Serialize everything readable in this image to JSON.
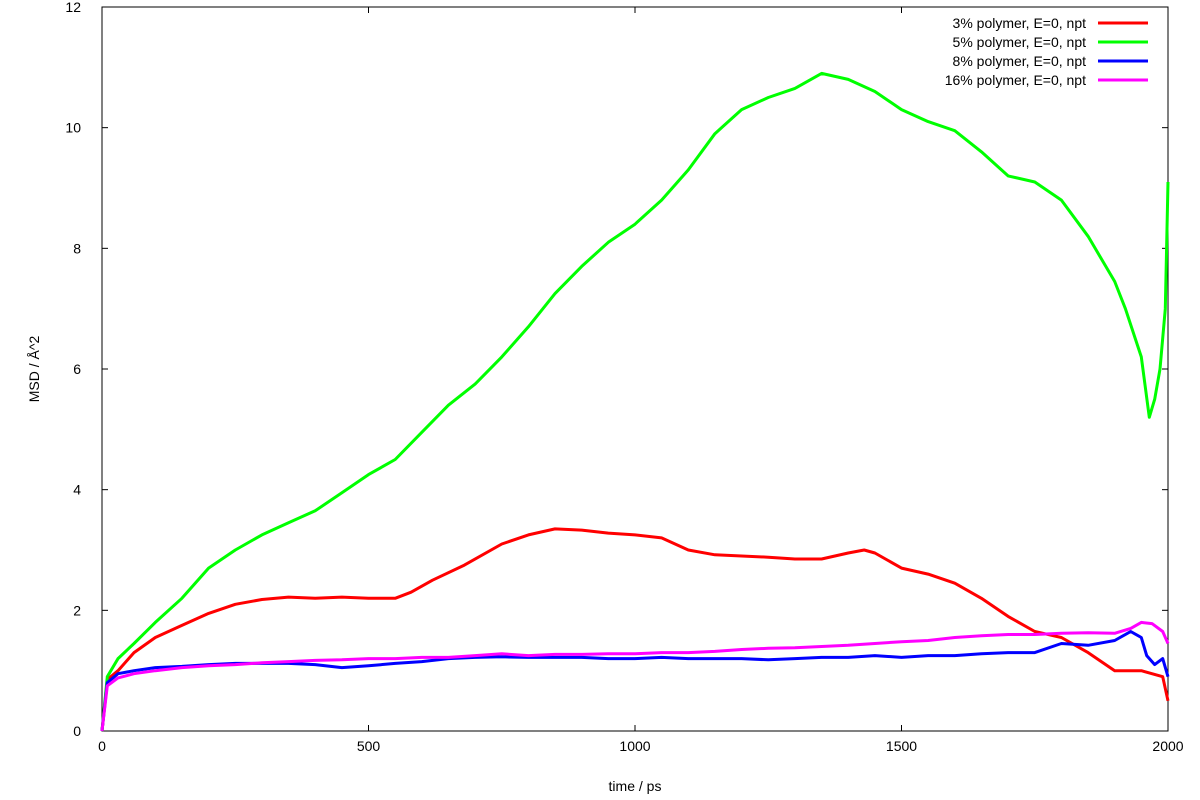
{
  "chart_data": {
    "type": "line",
    "title": "",
    "xlabel": "time / ps",
    "ylabel": "MSD / Å^2",
    "xlim": [
      0,
      2000
    ],
    "ylim": [
      0,
      12
    ],
    "xticks": [
      0,
      500,
      1000,
      1500,
      2000
    ],
    "yticks": [
      0,
      2,
      4,
      6,
      8,
      10,
      12
    ],
    "grid": false,
    "legend_position": "top-right",
    "series": [
      {
        "name": "3% polymer, E=0, npt",
        "color": "#ff0000",
        "x": [
          0,
          10,
          30,
          60,
          100,
          150,
          200,
          250,
          300,
          350,
          400,
          450,
          500,
          550,
          580,
          620,
          680,
          750,
          800,
          850,
          900,
          950,
          1000,
          1050,
          1100,
          1150,
          1200,
          1250,
          1300,
          1350,
          1400,
          1430,
          1450,
          1500,
          1550,
          1600,
          1650,
          1700,
          1750,
          1800,
          1850,
          1900,
          1950,
          1990,
          2000
        ],
        "y": [
          0,
          0.85,
          1.0,
          1.3,
          1.55,
          1.75,
          1.95,
          2.1,
          2.18,
          2.22,
          2.2,
          2.22,
          2.2,
          2.2,
          2.3,
          2.5,
          2.75,
          3.1,
          3.25,
          3.35,
          3.33,
          3.28,
          3.25,
          3.2,
          3.0,
          2.92,
          2.9,
          2.88,
          2.85,
          2.85,
          2.95,
          3.0,
          2.95,
          2.7,
          2.6,
          2.45,
          2.2,
          1.9,
          1.65,
          1.55,
          1.3,
          1.0,
          1.0,
          0.9,
          0.5
        ]
      },
      {
        "name": "5% polymer, E=0, npt",
        "color": "#00ff00",
        "x": [
          0,
          10,
          30,
          60,
          100,
          150,
          200,
          250,
          300,
          350,
          400,
          450,
          500,
          550,
          600,
          650,
          700,
          750,
          800,
          850,
          900,
          950,
          1000,
          1050,
          1100,
          1150,
          1200,
          1250,
          1300,
          1350,
          1400,
          1450,
          1500,
          1550,
          1600,
          1650,
          1700,
          1750,
          1800,
          1850,
          1900,
          1920,
          1950,
          1965,
          1975,
          1985,
          1995,
          2000
        ],
        "y": [
          0,
          0.9,
          1.2,
          1.45,
          1.8,
          2.2,
          2.7,
          3.0,
          3.25,
          3.45,
          3.65,
          3.95,
          4.25,
          4.5,
          4.95,
          5.4,
          5.75,
          6.2,
          6.7,
          7.25,
          7.7,
          8.1,
          8.4,
          8.8,
          9.3,
          9.9,
          10.3,
          10.5,
          10.65,
          10.9,
          10.8,
          10.6,
          10.3,
          10.1,
          9.95,
          9.6,
          9.2,
          9.1,
          8.8,
          8.2,
          7.45,
          7.0,
          6.2,
          5.2,
          5.5,
          6.0,
          7.0,
          9.1
        ]
      },
      {
        "name": "8% polymer, E=0, npt",
        "color": "#0000ff",
        "x": [
          0,
          10,
          30,
          60,
          100,
          150,
          200,
          250,
          300,
          350,
          400,
          450,
          500,
          550,
          600,
          650,
          700,
          750,
          800,
          850,
          900,
          950,
          1000,
          1050,
          1100,
          1150,
          1200,
          1250,
          1300,
          1350,
          1400,
          1450,
          1500,
          1550,
          1600,
          1650,
          1700,
          1750,
          1800,
          1850,
          1900,
          1930,
          1950,
          1960,
          1975,
          1990,
          2000
        ],
        "y": [
          0,
          0.8,
          0.95,
          1.0,
          1.05,
          1.07,
          1.1,
          1.12,
          1.12,
          1.12,
          1.1,
          1.05,
          1.08,
          1.12,
          1.15,
          1.2,
          1.22,
          1.23,
          1.22,
          1.22,
          1.22,
          1.2,
          1.2,
          1.22,
          1.2,
          1.2,
          1.2,
          1.18,
          1.2,
          1.22,
          1.22,
          1.25,
          1.22,
          1.25,
          1.25,
          1.28,
          1.3,
          1.3,
          1.45,
          1.42,
          1.5,
          1.65,
          1.55,
          1.25,
          1.1,
          1.2,
          0.9
        ]
      },
      {
        "name": "16% polymer, E=0, npt",
        "color": "#ff00ff",
        "x": [
          0,
          10,
          30,
          60,
          100,
          150,
          200,
          250,
          300,
          350,
          400,
          450,
          500,
          550,
          600,
          650,
          700,
          750,
          800,
          850,
          900,
          950,
          1000,
          1050,
          1100,
          1150,
          1200,
          1250,
          1300,
          1350,
          1400,
          1450,
          1500,
          1550,
          1600,
          1650,
          1700,
          1750,
          1800,
          1850,
          1900,
          1930,
          1950,
          1970,
          1990,
          2000
        ],
        "y": [
          0,
          0.75,
          0.88,
          0.95,
          1.0,
          1.05,
          1.08,
          1.1,
          1.13,
          1.15,
          1.17,
          1.18,
          1.2,
          1.2,
          1.22,
          1.22,
          1.25,
          1.28,
          1.25,
          1.27,
          1.27,
          1.28,
          1.28,
          1.3,
          1.3,
          1.32,
          1.35,
          1.37,
          1.38,
          1.4,
          1.42,
          1.45,
          1.48,
          1.5,
          1.55,
          1.58,
          1.6,
          1.6,
          1.62,
          1.63,
          1.62,
          1.7,
          1.8,
          1.78,
          1.65,
          1.45
        ]
      }
    ]
  }
}
